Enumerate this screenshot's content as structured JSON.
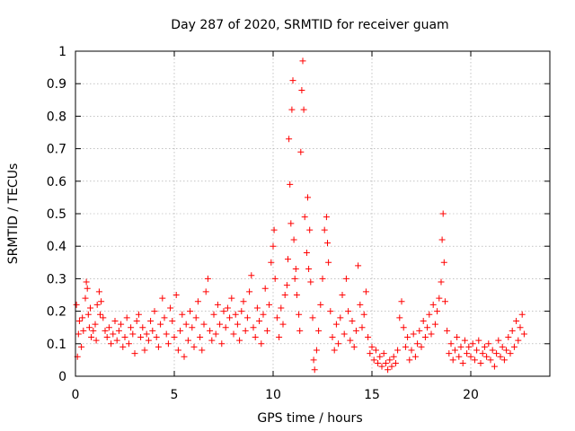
{
  "chart_data": {
    "type": "scatter",
    "title": "Day 287 of 2020, SRMTID for receiver guam",
    "xlabel": "GPS time / hours",
    "ylabel": "SRMTID / TECUs",
    "xlim": [
      0,
      24
    ],
    "ylim": [
      0,
      1
    ],
    "x_ticks": [
      0,
      5,
      10,
      15,
      20
    ],
    "x_tick_labels": [
      "0",
      "5",
      "10",
      "15",
      "20"
    ],
    "y_ticks": [
      0,
      0.1,
      0.2,
      0.3,
      0.4,
      0.5,
      0.6,
      0.7,
      0.8,
      0.9,
      1
    ],
    "y_tick_labels": [
      "0",
      "0.1",
      "0.2",
      "0.3",
      "0.4",
      "0.5",
      "0.6",
      "0.7",
      "0.8",
      "0.9",
      "1"
    ],
    "grid": true,
    "marker": "+",
    "color": "#ff0000",
    "series": [
      {
        "name": "SRMTID",
        "points": [
          [
            0.05,
            0.22
          ],
          [
            0.1,
            0.06
          ],
          [
            0.15,
            0.13
          ],
          [
            0.2,
            0.17
          ],
          [
            0.3,
            0.09
          ],
          [
            0.35,
            0.18
          ],
          [
            0.4,
            0.14
          ],
          [
            0.5,
            0.24
          ],
          [
            0.55,
            0.29
          ],
          [
            0.6,
            0.27
          ],
          [
            0.65,
            0.19
          ],
          [
            0.7,
            0.15
          ],
          [
            0.75,
            0.21
          ],
          [
            0.8,
            0.12
          ],
          [
            0.9,
            0.14
          ],
          [
            1.0,
            0.16
          ],
          [
            1.05,
            0.11
          ],
          [
            1.1,
            0.22
          ],
          [
            1.2,
            0.26
          ],
          [
            1.25,
            0.19
          ],
          [
            1.3,
            0.23
          ],
          [
            1.4,
            0.18
          ],
          [
            1.5,
            0.14
          ],
          [
            1.6,
            0.12
          ],
          [
            1.7,
            0.15
          ],
          [
            1.8,
            0.1
          ],
          [
            1.9,
            0.13
          ],
          [
            2.0,
            0.17
          ],
          [
            2.1,
            0.11
          ],
          [
            2.2,
            0.14
          ],
          [
            2.3,
            0.16
          ],
          [
            2.4,
            0.09
          ],
          [
            2.5,
            0.12
          ],
          [
            2.6,
            0.18
          ],
          [
            2.7,
            0.1
          ],
          [
            2.8,
            0.15
          ],
          [
            2.9,
            0.13
          ],
          [
            3.0,
            0.07
          ],
          [
            3.1,
            0.17
          ],
          [
            3.2,
            0.19
          ],
          [
            3.3,
            0.12
          ],
          [
            3.4,
            0.15
          ],
          [
            3.5,
            0.08
          ],
          [
            3.6,
            0.13
          ],
          [
            3.7,
            0.11
          ],
          [
            3.8,
            0.17
          ],
          [
            3.9,
            0.14
          ],
          [
            4.0,
            0.2
          ],
          [
            4.1,
            0.12
          ],
          [
            4.2,
            0.09
          ],
          [
            4.3,
            0.16
          ],
          [
            4.4,
            0.24
          ],
          [
            4.5,
            0.18
          ],
          [
            4.6,
            0.13
          ],
          [
            4.7,
            0.1
          ],
          [
            4.8,
            0.21
          ],
          [
            4.9,
            0.17
          ],
          [
            5.0,
            0.12
          ],
          [
            5.1,
            0.25
          ],
          [
            5.2,
            0.08
          ],
          [
            5.3,
            0.14
          ],
          [
            5.4,
            0.19
          ],
          [
            5.5,
            0.06
          ],
          [
            5.6,
            0.16
          ],
          [
            5.7,
            0.11
          ],
          [
            5.8,
            0.2
          ],
          [
            5.9,
            0.15
          ],
          [
            6.0,
            0.09
          ],
          [
            6.1,
            0.18
          ],
          [
            6.2,
            0.23
          ],
          [
            6.3,
            0.12
          ],
          [
            6.4,
            0.08
          ],
          [
            6.5,
            0.16
          ],
          [
            6.6,
            0.26
          ],
          [
            6.7,
            0.3
          ],
          [
            6.8,
            0.14
          ],
          [
            6.9,
            0.11
          ],
          [
            7.0,
            0.19
          ],
          [
            7.1,
            0.13
          ],
          [
            7.2,
            0.22
          ],
          [
            7.3,
            0.16
          ],
          [
            7.4,
            0.1
          ],
          [
            7.5,
            0.2
          ],
          [
            7.6,
            0.15
          ],
          [
            7.7,
            0.21
          ],
          [
            7.8,
            0.18
          ],
          [
            7.9,
            0.24
          ],
          [
            8.0,
            0.13
          ],
          [
            8.1,
            0.19
          ],
          [
            8.2,
            0.16
          ],
          [
            8.3,
            0.11
          ],
          [
            8.4,
            0.2
          ],
          [
            8.5,
            0.23
          ],
          [
            8.6,
            0.14
          ],
          [
            8.7,
            0.18
          ],
          [
            8.8,
            0.26
          ],
          [
            8.9,
            0.31
          ],
          [
            9.0,
            0.15
          ],
          [
            9.1,
            0.12
          ],
          [
            9.2,
            0.21
          ],
          [
            9.3,
            0.17
          ],
          [
            9.4,
            0.1
          ],
          [
            9.5,
            0.19
          ],
          [
            9.6,
            0.27
          ],
          [
            9.7,
            0.14
          ],
          [
            9.8,
            0.22
          ],
          [
            9.9,
            0.35
          ],
          [
            10.0,
            0.4
          ],
          [
            10.05,
            0.45
          ],
          [
            10.1,
            0.3
          ],
          [
            10.2,
            0.18
          ],
          [
            10.3,
            0.12
          ],
          [
            10.4,
            0.21
          ],
          [
            10.5,
            0.16
          ],
          [
            10.6,
            0.25
          ],
          [
            10.7,
            0.28
          ],
          [
            10.75,
            0.36
          ],
          [
            10.8,
            0.73
          ],
          [
            10.85,
            0.59
          ],
          [
            10.9,
            0.47
          ],
          [
            10.95,
            0.82
          ],
          [
            11.0,
            0.91
          ],
          [
            11.05,
            0.42
          ],
          [
            11.1,
            0.3
          ],
          [
            11.15,
            0.33
          ],
          [
            11.2,
            0.25
          ],
          [
            11.3,
            0.19
          ],
          [
            11.35,
            0.14
          ],
          [
            11.4,
            0.69
          ],
          [
            11.45,
            0.88
          ],
          [
            11.5,
            0.97
          ],
          [
            11.55,
            0.82
          ],
          [
            11.6,
            0.49
          ],
          [
            11.7,
            0.38
          ],
          [
            11.75,
            0.55
          ],
          [
            11.8,
            0.33
          ],
          [
            11.85,
            0.45
          ],
          [
            11.9,
            0.29
          ],
          [
            12.0,
            0.18
          ],
          [
            12.05,
            0.05
          ],
          [
            12.1,
            0.02
          ],
          [
            12.2,
            0.08
          ],
          [
            12.3,
            0.14
          ],
          [
            12.4,
            0.22
          ],
          [
            12.5,
            0.3
          ],
          [
            12.6,
            0.45
          ],
          [
            12.7,
            0.49
          ],
          [
            12.75,
            0.41
          ],
          [
            12.8,
            0.35
          ],
          [
            12.9,
            0.2
          ],
          [
            13.0,
            0.12
          ],
          [
            13.1,
            0.08
          ],
          [
            13.2,
            0.16
          ],
          [
            13.3,
            0.1
          ],
          [
            13.4,
            0.18
          ],
          [
            13.5,
            0.25
          ],
          [
            13.6,
            0.13
          ],
          [
            13.7,
            0.3
          ],
          [
            13.8,
            0.2
          ],
          [
            13.9,
            0.11
          ],
          [
            14.0,
            0.17
          ],
          [
            14.1,
            0.09
          ],
          [
            14.2,
            0.14
          ],
          [
            14.3,
            0.34
          ],
          [
            14.4,
            0.22
          ],
          [
            14.5,
            0.15
          ],
          [
            14.6,
            0.19
          ],
          [
            14.7,
            0.26
          ],
          [
            14.8,
            0.12
          ],
          [
            14.9,
            0.07
          ],
          [
            15.0,
            0.09
          ],
          [
            15.1,
            0.05
          ],
          [
            15.2,
            0.08
          ],
          [
            15.3,
            0.04
          ],
          [
            15.4,
            0.06
          ],
          [
            15.5,
            0.03
          ],
          [
            15.6,
            0.07
          ],
          [
            15.7,
            0.04
          ],
          [
            15.8,
            0.02
          ],
          [
            15.9,
            0.05
          ],
          [
            16.0,
            0.03
          ],
          [
            16.1,
            0.06
          ],
          [
            16.2,
            0.04
          ],
          [
            16.3,
            0.08
          ],
          [
            16.4,
            0.18
          ],
          [
            16.5,
            0.23
          ],
          [
            16.6,
            0.15
          ],
          [
            16.7,
            0.09
          ],
          [
            16.8,
            0.12
          ],
          [
            16.9,
            0.05
          ],
          [
            17.0,
            0.08
          ],
          [
            17.1,
            0.13
          ],
          [
            17.2,
            0.06
          ],
          [
            17.3,
            0.1
          ],
          [
            17.4,
            0.14
          ],
          [
            17.5,
            0.09
          ],
          [
            17.6,
            0.17
          ],
          [
            17.7,
            0.12
          ],
          [
            17.8,
            0.15
          ],
          [
            17.9,
            0.19
          ],
          [
            18.0,
            0.13
          ],
          [
            18.1,
            0.22
          ],
          [
            18.2,
            0.16
          ],
          [
            18.3,
            0.2
          ],
          [
            18.4,
            0.24
          ],
          [
            18.5,
            0.29
          ],
          [
            18.55,
            0.42
          ],
          [
            18.6,
            0.5
          ],
          [
            18.65,
            0.35
          ],
          [
            18.7,
            0.23
          ],
          [
            18.8,
            0.14
          ],
          [
            18.9,
            0.07
          ],
          [
            19.0,
            0.1
          ],
          [
            19.1,
            0.05
          ],
          [
            19.2,
            0.08
          ],
          [
            19.3,
            0.12
          ],
          [
            19.4,
            0.06
          ],
          [
            19.5,
            0.09
          ],
          [
            19.6,
            0.04
          ],
          [
            19.7,
            0.11
          ],
          [
            19.8,
            0.07
          ],
          [
            19.9,
            0.09
          ],
          [
            20.0,
            0.06
          ],
          [
            20.1,
            0.1
          ],
          [
            20.2,
            0.05
          ],
          [
            20.3,
            0.08
          ],
          [
            20.4,
            0.11
          ],
          [
            20.5,
            0.04
          ],
          [
            20.6,
            0.07
          ],
          [
            20.7,
            0.09
          ],
          [
            20.8,
            0.06
          ],
          [
            20.9,
            0.1
          ],
          [
            21.0,
            0.05
          ],
          [
            21.1,
            0.08
          ],
          [
            21.2,
            0.03
          ],
          [
            21.3,
            0.07
          ],
          [
            21.4,
            0.11
          ],
          [
            21.5,
            0.06
          ],
          [
            21.6,
            0.09
          ],
          [
            21.7,
            0.05
          ],
          [
            21.8,
            0.08
          ],
          [
            21.9,
            0.12
          ],
          [
            22.0,
            0.07
          ],
          [
            22.1,
            0.14
          ],
          [
            22.2,
            0.09
          ],
          [
            22.3,
            0.17
          ],
          [
            22.4,
            0.11
          ],
          [
            22.5,
            0.15
          ],
          [
            22.6,
            0.19
          ],
          [
            22.7,
            0.13
          ]
        ]
      }
    ]
  }
}
